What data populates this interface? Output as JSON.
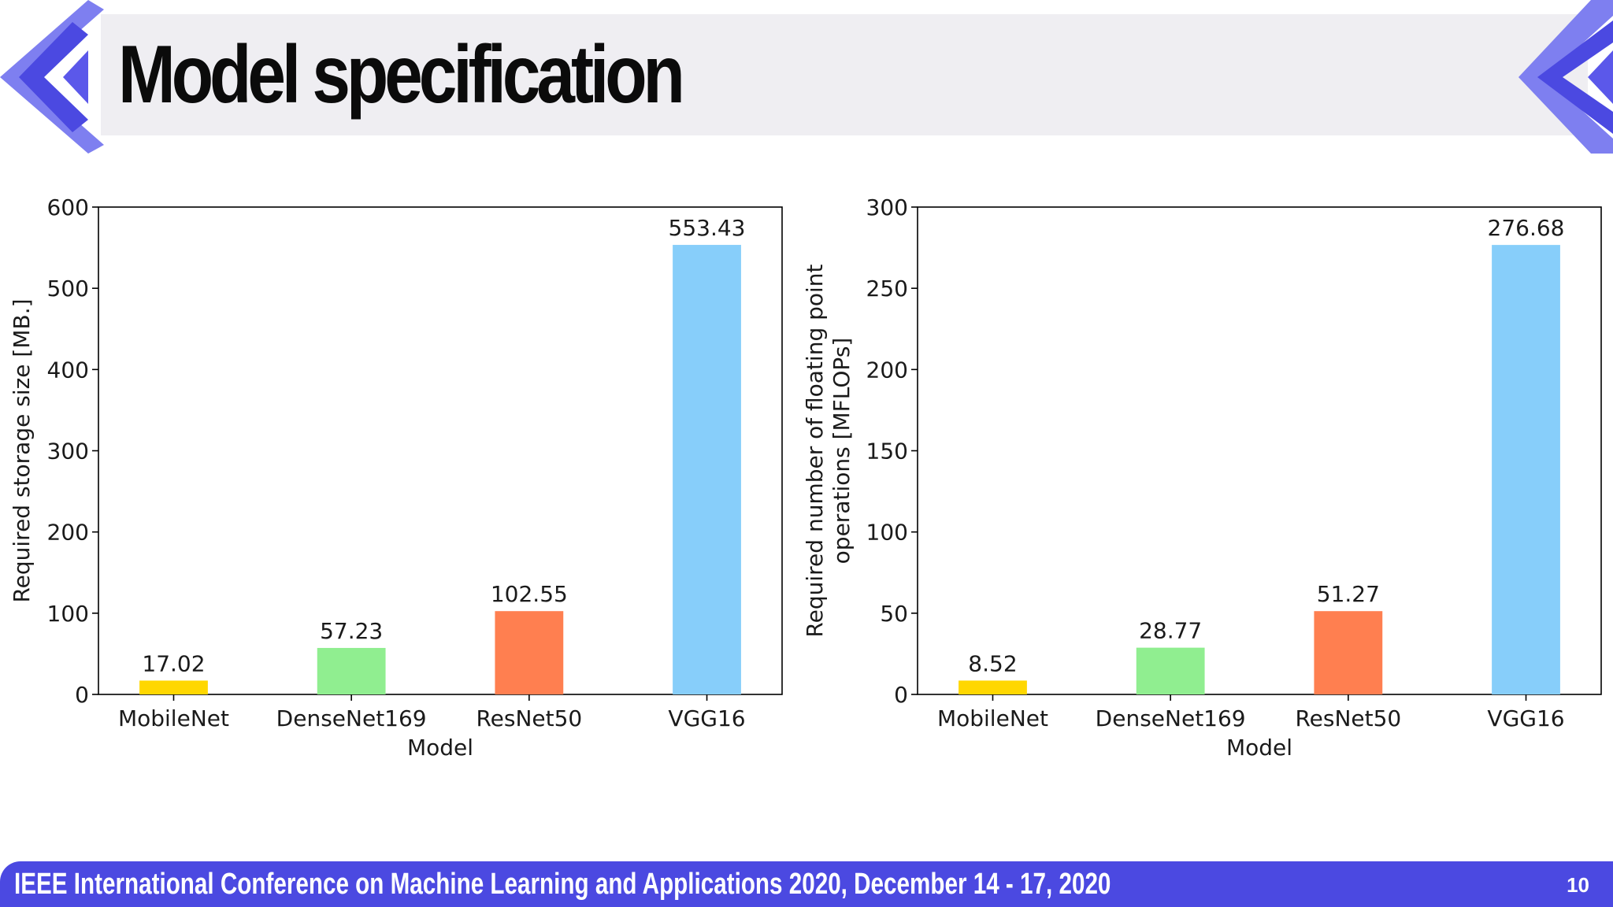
{
  "slide": {
    "title": "Model specification",
    "footer": "IEEE International Conference on Machine Learning and Applications 2020, December 14 - 17, 2020",
    "page_number": "10",
    "accent_color": "#4b49e1"
  },
  "chart_data": [
    {
      "type": "bar",
      "categories": [
        "MobileNet",
        "DenseNet169",
        "ResNet50",
        "VGG16"
      ],
      "values": [
        17.02,
        57.23,
        102.55,
        553.43
      ],
      "value_labels": [
        "17.02",
        "57.23",
        "102.55",
        "553.43"
      ],
      "colors": [
        "#ffd700",
        "#90ee90",
        "#ff7f50",
        "#87cefa"
      ],
      "xlabel": "Model",
      "ylabel": "Required storage size [MB.]",
      "ylim": [
        0,
        600
      ],
      "yticks": [
        0,
        100,
        200,
        300,
        400,
        500,
        600
      ],
      "grid": false
    },
    {
      "type": "bar",
      "categories": [
        "MobileNet",
        "DenseNet169",
        "ResNet50",
        "VGG16"
      ],
      "values": [
        8.52,
        28.77,
        51.27,
        276.68
      ],
      "value_labels": [
        "8.52",
        "28.77",
        "51.27",
        "276.68"
      ],
      "colors": [
        "#ffd700",
        "#90ee90",
        "#ff7f50",
        "#87cefa"
      ],
      "xlabel": "Model",
      "ylabel_lines": [
        "Required number of floating point",
        "operations [MFLOPs]"
      ],
      "ylim": [
        0,
        300
      ],
      "yticks": [
        0,
        50,
        100,
        150,
        200,
        250,
        300
      ],
      "grid": false
    }
  ]
}
